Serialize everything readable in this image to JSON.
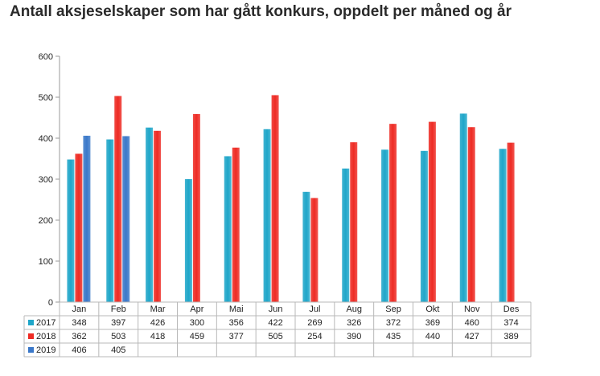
{
  "page": {
    "title": "Antall aksjeselskaper som har gått konkurs, oppdelt per måned og år"
  },
  "chart_data": {
    "type": "bar",
    "title": "Antall aksjeselskaper som har gått konkurs, oppdelt per måned og år",
    "xlabel": "",
    "ylabel": "",
    "ylim": [
      0,
      600
    ],
    "yticks": [
      "0",
      "100",
      "200",
      "300",
      "400",
      "500",
      "600"
    ],
    "categories": [
      "Jan",
      "Feb",
      "Mar",
      "Apr",
      "Mai",
      "Jun",
      "Jul",
      "Aug",
      "Sep",
      "Okt",
      "Nov",
      "Des"
    ],
    "series": [
      {
        "name": "2017",
        "color": "#1fa6c9",
        "values": [
          348,
          397,
          426,
          300,
          356,
          422,
          269,
          326,
          372,
          369,
          460,
          374
        ]
      },
      {
        "name": "2018",
        "color": "#ee2b24",
        "values": [
          362,
          503,
          418,
          459,
          377,
          505,
          254,
          390,
          435,
          440,
          427,
          389
        ]
      },
      {
        "name": "2019",
        "color": "#3a78c9",
        "values": [
          406,
          405,
          null,
          null,
          null,
          null,
          null,
          null,
          null,
          null,
          null,
          null
        ]
      }
    ],
    "grid": false,
    "legend": "data-table-below"
  }
}
